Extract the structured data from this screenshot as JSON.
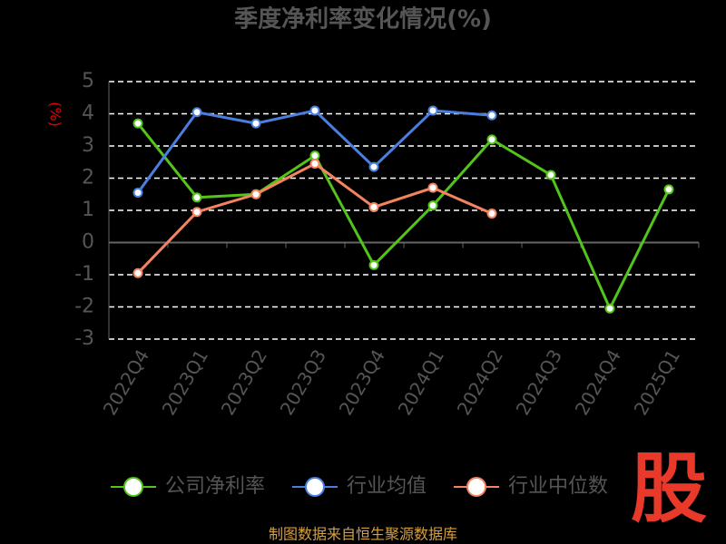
{
  "chart_data": {
    "type": "line",
    "title": "季度净利率变化情况(%)",
    "y_label": "(%)",
    "categories": [
      "2022Q4",
      "2023Q1",
      "2023Q2",
      "2023Q3",
      "2023Q4",
      "2024Q1",
      "2024Q2",
      "2024Q3",
      "2024Q4",
      "2025Q1"
    ],
    "series": [
      {
        "name": "公司净利率",
        "color": "#52c41a",
        "values": [
          3.7,
          1.4,
          1.5,
          2.7,
          -0.7,
          1.15,
          3.2,
          2.1,
          -2.05,
          1.65
        ]
      },
      {
        "name": "行业均值",
        "color": "#4a7fe0",
        "values": [
          1.55,
          4.05,
          3.7,
          4.1,
          2.35,
          4.1,
          3.95,
          null,
          null,
          null
        ]
      },
      {
        "name": "行业中位数",
        "color": "#f4845f",
        "values": [
          -0.95,
          0.95,
          1.5,
          2.45,
          1.1,
          1.7,
          0.9,
          null,
          null,
          null
        ]
      }
    ],
    "ylim": [
      -3,
      5
    ],
    "yticks": [
      -3,
      -2,
      -1,
      0,
      1,
      2,
      3,
      4,
      5
    ],
    "grid": true,
    "source": "制图数据来自恒生聚源数据库",
    "logo": "股"
  }
}
